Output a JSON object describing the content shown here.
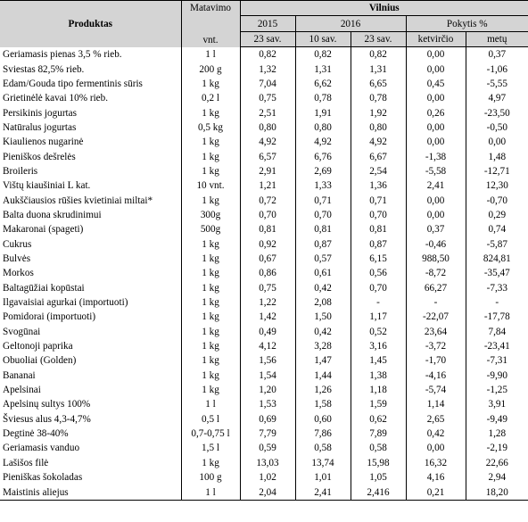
{
  "header": {
    "product": "Produktas",
    "unit_top": "Matavimo",
    "unit_bottom": "vnt.",
    "region": "Vilnius",
    "year_2015": "2015",
    "year_2016": "2016",
    "change": "Pokytis %",
    "sub": [
      "23 sav.",
      "10 sav.",
      "23 sav.",
      "ketvirčio",
      "metų"
    ]
  },
  "rows": [
    [
      "Geriamasis pienas 3,5 % rieb.",
      "1 l",
      "0,82",
      "0,82",
      "0,82",
      "0,00",
      "0,37"
    ],
    [
      "Sviestas 82,5% rieb.",
      "200 g",
      "1,32",
      "1,31",
      "1,31",
      "0,00",
      "-1,06"
    ],
    [
      "Edam/Gouda tipo fermentinis sūris",
      "1 kg",
      "7,04",
      "6,62",
      "6,65",
      "0,45",
      "-5,55"
    ],
    [
      "Grietinėlė kavai 10% rieb.",
      "0,2 l",
      "0,75",
      "0,78",
      "0,78",
      "0,00",
      "4,97"
    ],
    [
      "Persikinis jogurtas",
      "1 kg",
      "2,51",
      "1,91",
      "1,92",
      "0,26",
      "-23,50"
    ],
    [
      "Natūralus jogurtas",
      "0,5 kg",
      "0,80",
      "0,80",
      "0,80",
      "0,00",
      "-0,50"
    ],
    [
      "Kiaulienos nugarinė",
      "1 kg",
      "4,92",
      "4,92",
      "4,92",
      "0,00",
      "0,00"
    ],
    [
      "Pieniškos dešrelės",
      "1 kg",
      "6,57",
      "6,76",
      "6,67",
      "-1,38",
      "1,48"
    ],
    [
      "Broileris",
      "1 kg",
      "2,91",
      "2,69",
      "2,54",
      "-5,58",
      "-12,71"
    ],
    [
      "Vištų kiaušiniai L kat.",
      "10 vnt.",
      "1,21",
      "1,33",
      "1,36",
      "2,41",
      "12,30"
    ],
    [
      "Aukščiausios rūšies kvietiniai miltai*",
      "1 kg",
      "0,72",
      "0,71",
      "0,71",
      "0,00",
      "-0,70"
    ],
    [
      "Balta duona skrudinimui",
      "300g",
      "0,70",
      "0,70",
      "0,70",
      "0,00",
      "0,29"
    ],
    [
      "Makaronai (spageti)",
      "500g",
      "0,81",
      "0,81",
      "0,81",
      "0,37",
      "0,74"
    ],
    [
      "Cukrus",
      "1 kg",
      "0,92",
      "0,87",
      "0,87",
      "-0,46",
      "-5,87"
    ],
    [
      "Bulvės",
      "1 kg",
      "0,67",
      "0,57",
      "6,15",
      "988,50",
      "824,81"
    ],
    [
      "Morkos",
      "1 kg",
      "0,86",
      "0,61",
      "0,56",
      "-8,72",
      "-35,47"
    ],
    [
      "Baltagūžiai kopūstai",
      "1 kg",
      "0,75",
      "0,42",
      "0,70",
      "66,27",
      "-7,33"
    ],
    [
      "Ilgavaisiai agurkai (importuoti)",
      "1 kg",
      "1,22",
      "2,08",
      "-",
      "-",
      "-"
    ],
    [
      "Pomidorai (importuoti)",
      "1 kg",
      "1,42",
      "1,50",
      "1,17",
      "-22,07",
      "-17,78"
    ],
    [
      "Svogūnai",
      "1 kg",
      "0,49",
      "0,42",
      "0,52",
      "23,64",
      "7,84"
    ],
    [
      "Geltonoji paprika",
      "1 kg",
      "4,12",
      "3,28",
      "3,16",
      "-3,72",
      "-23,41"
    ],
    [
      "Obuoliai (Golden)",
      "1 kg",
      "1,56",
      "1,47",
      "1,45",
      "-1,70",
      "-7,31"
    ],
    [
      "Bananai",
      "1 kg",
      "1,54",
      "1,44",
      "1,38",
      "-4,16",
      "-9,90"
    ],
    [
      "Apelsinai",
      "1 kg",
      "1,20",
      "1,26",
      "1,18",
      "-5,74",
      "-1,25"
    ],
    [
      "Apelsinų sultys 100%",
      "1 l",
      "1,53",
      "1,58",
      "1,59",
      "1,14",
      "3,91"
    ],
    [
      "Šviesus alus 4,3-4,7%",
      "0,5 l",
      "0,69",
      "0,60",
      "0,62",
      "2,65",
      "-9,49"
    ],
    [
      "Degtinė 38-40%",
      "0,7-0,75 l",
      "7,79",
      "7,86",
      "7,89",
      "0,42",
      "1,28"
    ],
    [
      "Geriamasis vanduo",
      "1,5 l",
      "0,59",
      "0,58",
      "0,58",
      "0,00",
      "-2,19"
    ],
    [
      "Lašišos filė",
      "1 kg",
      "13,03",
      "13,74",
      "15,98",
      "16,32",
      "22,66"
    ],
    [
      "Pieniškas šokoladas",
      "100 g",
      "1,02",
      "1,01",
      "1,05",
      "4,16",
      "2,94"
    ],
    [
      "Maistinis aliejus",
      "1 l",
      "2,04",
      "2,41",
      "2,416",
      "0,21",
      "18,20"
    ]
  ]
}
